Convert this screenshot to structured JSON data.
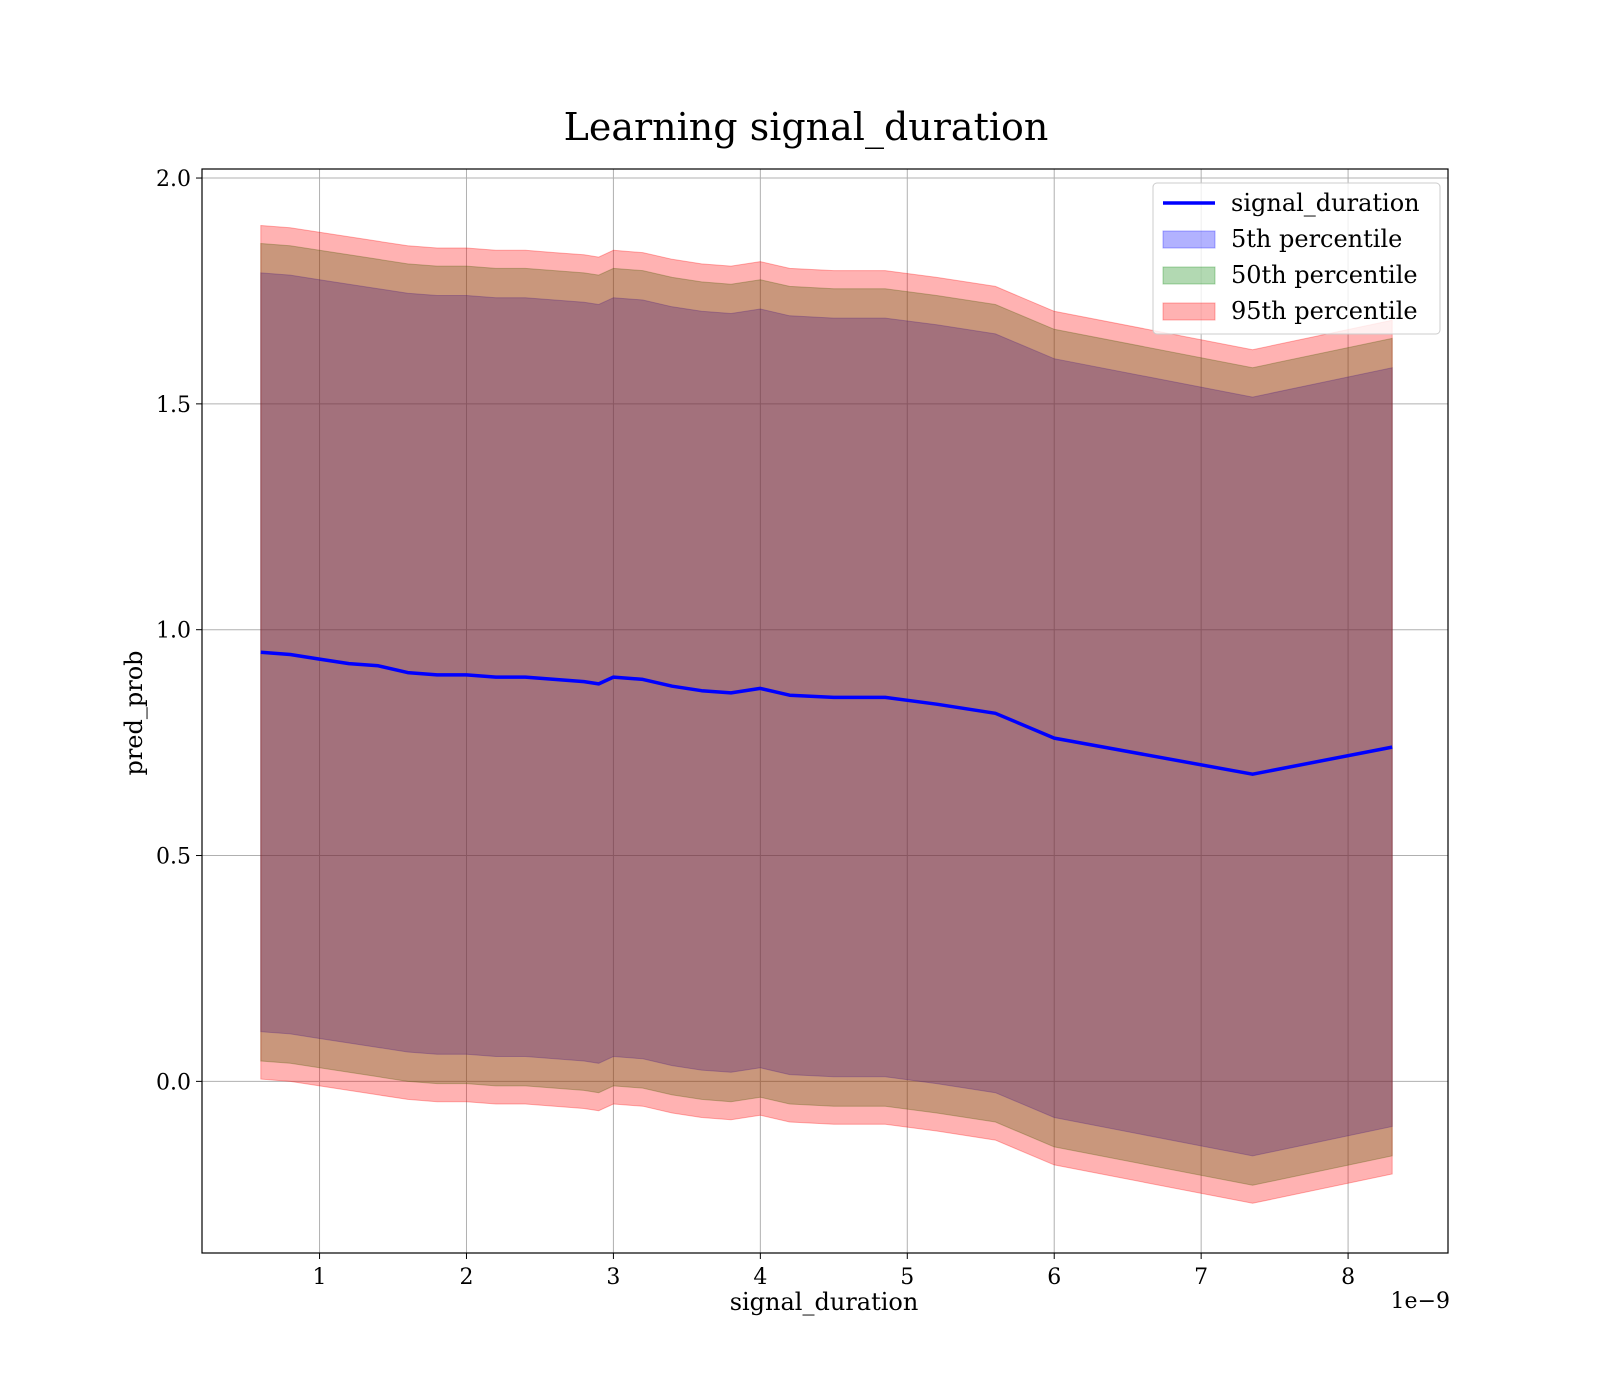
{
  "chart_data": {
    "type": "area",
    "title": "Learning signal_duration",
    "xlabel": "signal_duration",
    "ylabel": "pred_prob",
    "x_offset_label": "1e−9",
    "xlim": [
      0.2,
      8.68
    ],
    "ylim": [
      -0.38,
      2.02
    ],
    "x_ticks": [
      1,
      2,
      3,
      4,
      5,
      6,
      7,
      8
    ],
    "y_ticks": [
      0.0,
      0.5,
      1.0,
      1.5,
      2.0
    ],
    "x_tick_labels": [
      "1",
      "2",
      "3",
      "4",
      "5",
      "6",
      "7",
      "8"
    ],
    "y_tick_labels": [
      "0.0",
      "0.5",
      "1.0",
      "1.5",
      "2.0"
    ],
    "grid": true,
    "legend_position": "top-right",
    "x": [
      0.6,
      0.8,
      1.0,
      1.2,
      1.4,
      1.6,
      1.8,
      2.0,
      2.2,
      2.4,
      2.6,
      2.8,
      2.9,
      3.0,
      3.2,
      3.4,
      3.6,
      3.8,
      4.0,
      4.2,
      4.5,
      4.85,
      5.2,
      5.6,
      6.0,
      7.35,
      8.3
    ],
    "series": [
      {
        "name": "signal_duration",
        "kind": "line",
        "color": "#0000ff",
        "values": [
          0.95,
          0.945,
          0.935,
          0.925,
          0.92,
          0.905,
          0.9,
          0.9,
          0.895,
          0.895,
          0.89,
          0.885,
          0.88,
          0.895,
          0.89,
          0.875,
          0.865,
          0.86,
          0.87,
          0.855,
          0.85,
          0.85,
          0.835,
          0.815,
          0.76,
          0.68,
          0.74
        ]
      },
      {
        "name": "5th percentile",
        "kind": "band",
        "color": "#0000ff",
        "lower": [
          0.11,
          0.105,
          0.095,
          0.085,
          0.075,
          0.065,
          0.06,
          0.06,
          0.055,
          0.055,
          0.05,
          0.045,
          0.04,
          0.055,
          0.05,
          0.035,
          0.025,
          0.02,
          0.03,
          0.015,
          0.01,
          0.01,
          -0.005,
          -0.025,
          -0.08,
          -0.165,
          -0.1
        ],
        "upper": [
          1.79,
          1.785,
          1.775,
          1.765,
          1.755,
          1.745,
          1.74,
          1.74,
          1.735,
          1.735,
          1.73,
          1.725,
          1.72,
          1.735,
          1.73,
          1.715,
          1.705,
          1.7,
          1.71,
          1.695,
          1.69,
          1.69,
          1.675,
          1.655,
          1.6,
          1.515,
          1.58
        ]
      },
      {
        "name": "50th percentile",
        "kind": "band",
        "color": "#008000",
        "lower": [
          0.045,
          0.04,
          0.03,
          0.02,
          0.01,
          0.0,
          -0.005,
          -0.005,
          -0.01,
          -0.01,
          -0.015,
          -0.02,
          -0.025,
          -0.01,
          -0.015,
          -0.03,
          -0.04,
          -0.045,
          -0.035,
          -0.05,
          -0.055,
          -0.055,
          -0.07,
          -0.09,
          -0.145,
          -0.23,
          -0.165
        ],
        "upper": [
          1.855,
          1.85,
          1.84,
          1.83,
          1.82,
          1.81,
          1.805,
          1.805,
          1.8,
          1.8,
          1.795,
          1.79,
          1.785,
          1.8,
          1.795,
          1.78,
          1.77,
          1.765,
          1.775,
          1.76,
          1.755,
          1.755,
          1.74,
          1.72,
          1.665,
          1.58,
          1.645
        ]
      },
      {
        "name": "95th percentile",
        "kind": "band",
        "color": "#ff0000",
        "lower": [
          0.005,
          0.0,
          -0.01,
          -0.02,
          -0.03,
          -0.04,
          -0.045,
          -0.045,
          -0.05,
          -0.05,
          -0.055,
          -0.06,
          -0.065,
          -0.05,
          -0.055,
          -0.07,
          -0.08,
          -0.085,
          -0.075,
          -0.09,
          -0.095,
          -0.095,
          -0.11,
          -0.13,
          -0.185,
          -0.27,
          -0.205
        ],
        "upper": [
          1.895,
          1.89,
          1.88,
          1.87,
          1.86,
          1.85,
          1.845,
          1.845,
          1.84,
          1.84,
          1.835,
          1.83,
          1.825,
          1.84,
          1.835,
          1.82,
          1.81,
          1.805,
          1.815,
          1.8,
          1.795,
          1.795,
          1.78,
          1.76,
          1.705,
          1.62,
          1.685
        ]
      }
    ]
  }
}
